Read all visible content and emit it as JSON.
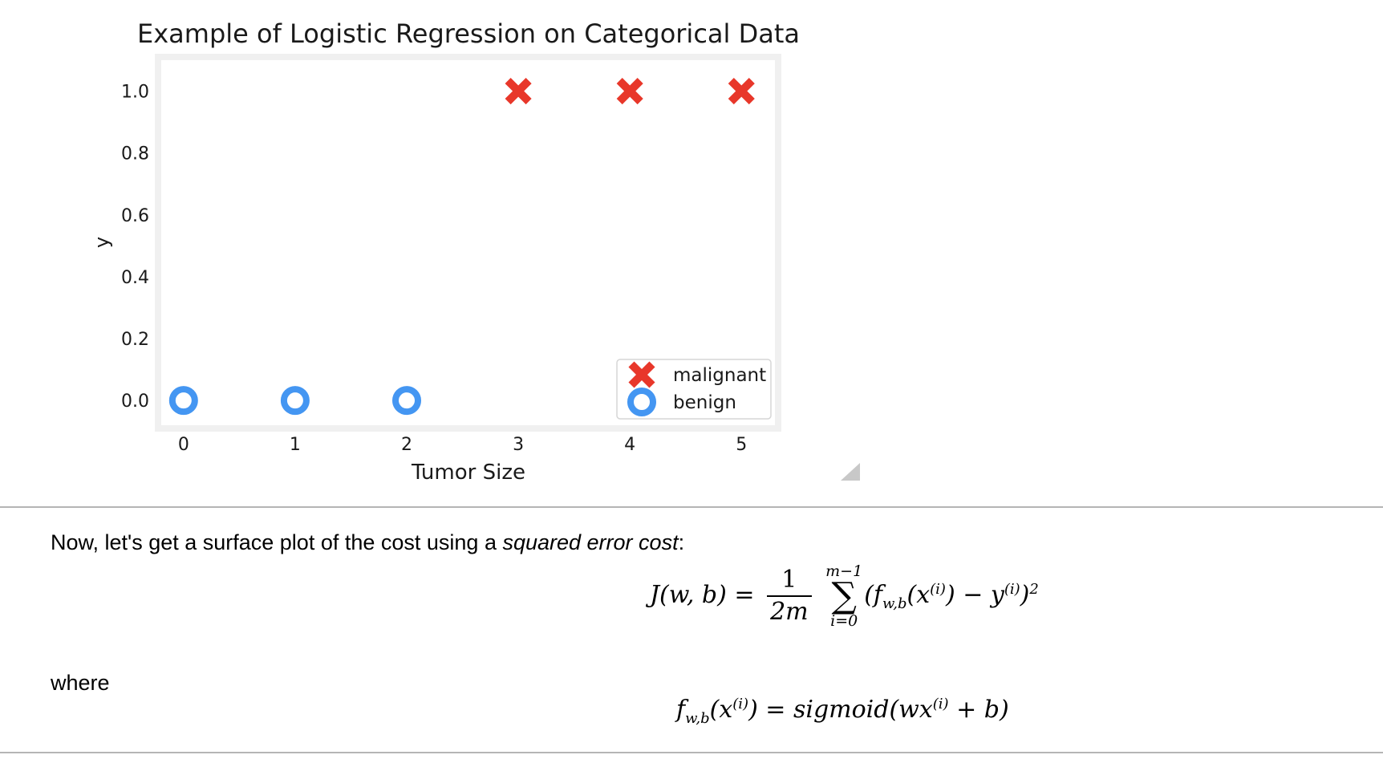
{
  "colors": {
    "malignant": "#e8372a",
    "benign": "#4496f2",
    "frame": "#f0f0f0",
    "divider": "#b5b5b5"
  },
  "chart_data": {
    "type": "scatter",
    "title": "Example of Logistic Regression on Categorical Data",
    "xlabel": "Tumor Size",
    "ylabel": "y",
    "xlim": [
      -0.2,
      5.3
    ],
    "ylim": [
      -0.08,
      1.1
    ],
    "x_ticks": [
      0,
      1,
      2,
      3,
      4,
      5
    ],
    "x_tick_labels": [
      "0",
      "1",
      "2",
      "3",
      "4",
      "5"
    ],
    "y_ticks": [
      0.0,
      0.2,
      0.4,
      0.6,
      0.8,
      1.0
    ],
    "y_tick_labels": [
      "0.0",
      "0.2",
      "0.4",
      "0.6",
      "0.8",
      "1.0"
    ],
    "grid": false,
    "legend_position": "lower-right",
    "series": [
      {
        "name": "malignant",
        "marker": "x",
        "x": [
          3,
          4,
          5
        ],
        "y": [
          1,
          1,
          1
        ]
      },
      {
        "name": "benign",
        "marker": "o",
        "x": [
          0,
          1,
          2
        ],
        "y": [
          0,
          0,
          0
        ]
      }
    ]
  },
  "markdown": {
    "intro_prefix": "Now, let's get a surface plot of the cost using a ",
    "intro_emphasis": "squared error cost",
    "intro_suffix": ":",
    "where": "where"
  },
  "equations": {
    "cost_lhs": "J(w, b) =",
    "cost_frac_num": "1",
    "cost_frac_den": "2m",
    "cost_sum_upper": "m−1",
    "cost_sum_symbol": "∑",
    "cost_sum_lower": "i=0",
    "cost_body_open": "(f",
    "cost_body_sub": "w,b",
    "cost_body_mid": "(x",
    "cost_body_sup_i": "(i)",
    "cost_body_minus": ") − y",
    "cost_body_sup_i2": "(i)",
    "cost_body_close": ")",
    "cost_body_sup_2": "2",
    "model_f": "f",
    "model_sub": "w,b",
    "model_arg_open": "(x",
    "model_arg_sup": "(i)",
    "model_eq": ") = sigmoid(wx",
    "model_sup2": "(i)",
    "model_tail": " + b)"
  }
}
